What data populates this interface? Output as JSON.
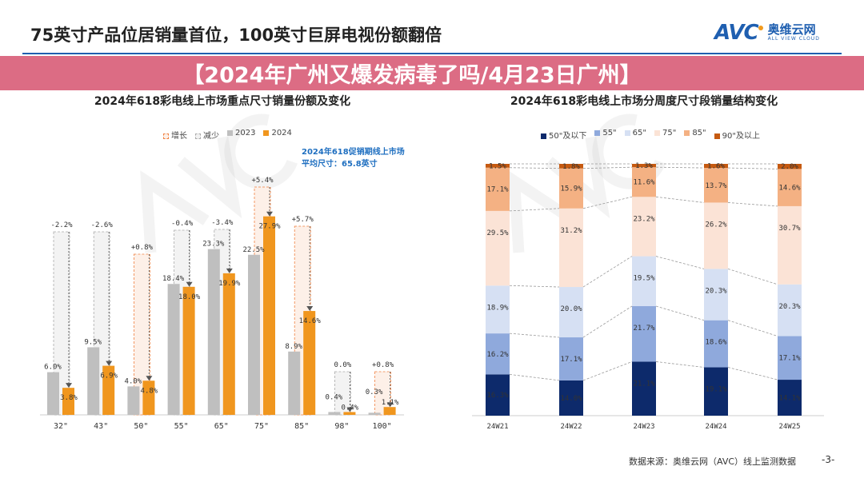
{
  "header": {
    "title": "75英寸产品位居销量首位，100英寸巨屏电视份额翻倍",
    "logo_mark": "AVC",
    "logo_cn": "奥维云网",
    "logo_en": "ALL VIEW CLOUD"
  },
  "banner": {
    "text": "【2024年广州又爆发病毒了吗/4月23日广州】"
  },
  "footer": {
    "source": "数据来源：奥维云网（AVC）线上监测数据",
    "page": "-3-"
  },
  "colors": {
    "accent": "#1f5fb0",
    "gray_2023": "#bfbfbf",
    "orange_2024": "#f0961e",
    "increase": "#f08040",
    "decrease": "#aaaaaa",
    "banner": "#d65470"
  },
  "chart_data": [
    {
      "type": "bar",
      "title": "2024年618彩电线上市场重点尺寸销量份额及变化",
      "legend": [
        "增长",
        "减少",
        "2023",
        "2024"
      ],
      "legend_position": "top",
      "annotation": [
        "2024年618促销期线上市场",
        "平均尺寸：65.8英寸"
      ],
      "categories": [
        "32\"",
        "43\"",
        "50\"",
        "55\"",
        "65\"",
        "75\"",
        "85\"",
        "98\"",
        "100\""
      ],
      "series": [
        {
          "name": "2023",
          "values": [
            6.0,
            9.5,
            4.0,
            18.4,
            23.3,
            22.5,
            8.9,
            0.4,
            0.3
          ]
        },
        {
          "name": "2024",
          "values": [
            3.8,
            6.9,
            4.8,
            18.0,
            19.9,
            27.9,
            14.6,
            0.4,
            1.1
          ]
        }
      ],
      "changes": [
        "-2.2%",
        "-2.6%",
        "+0.8%",
        "-0.4%",
        "-3.4%",
        "+5.4%",
        "+5.7%",
        "0.0%",
        "+0.8%"
      ],
      "unit": "%",
      "grid": false
    },
    {
      "type": "bar",
      "stacked": true,
      "title": "2024年618彩电线上市场分周度尺寸段销量结构变化",
      "legend_position": "top",
      "categories": [
        "24W21",
        "24W22",
        "24W23",
        "24W24",
        "24W25"
      ],
      "series": [
        {
          "name": "50\"及以下",
          "color": "#0d2a6b",
          "values": [
            16.3,
            14.0,
            21.1,
            19.1,
            14.1
          ]
        },
        {
          "name": "55\"",
          "color": "#8fa9dc",
          "values": [
            16.2,
            17.1,
            21.7,
            18.6,
            17.1
          ]
        },
        {
          "name": "65\"",
          "color": "#d6e0f3",
          "values": [
            18.9,
            20.0,
            19.5,
            20.3,
            20.3
          ]
        },
        {
          "name": "75\"",
          "color": "#fbe3d6",
          "values": [
            29.5,
            31.2,
            23.2,
            26.2,
            30.7
          ]
        },
        {
          "name": "85\"",
          "color": "#f4b183",
          "values": [
            17.1,
            15.9,
            11.6,
            13.7,
            14.6
          ]
        },
        {
          "name": "90\"及以上",
          "color": "#c55a11",
          "values": [
            1.5,
            1.8,
            1.3,
            1.6,
            2.0
          ]
        }
      ],
      "unit": "%",
      "ylim": [
        0,
        100
      ],
      "grid": false
    }
  ]
}
